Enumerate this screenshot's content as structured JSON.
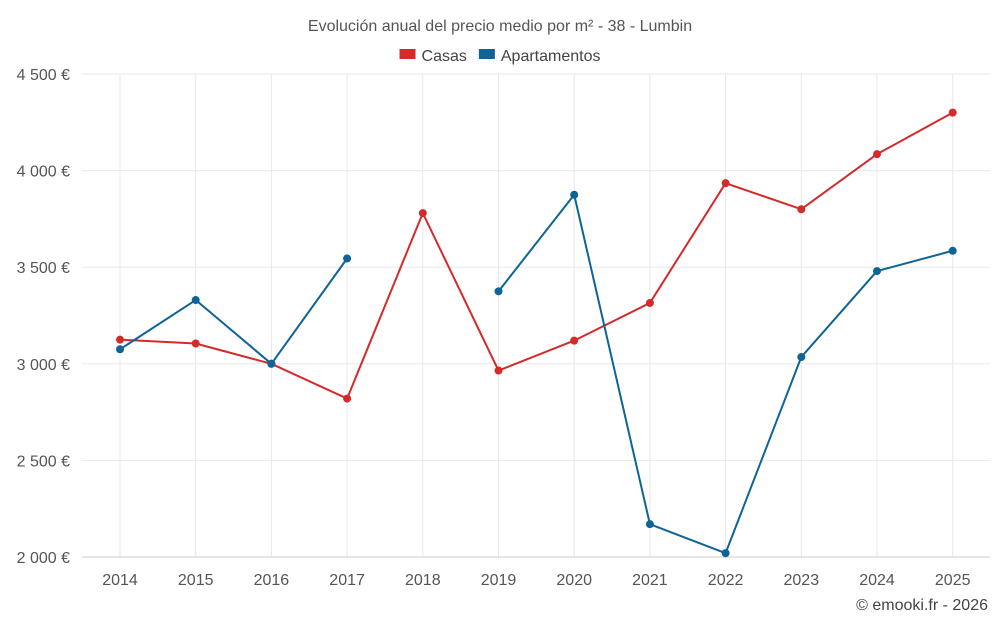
{
  "chart_data": {
    "type": "line",
    "title": "Evolución anual del precio medio por m² - 38 - Lumbin",
    "categories": [
      "2014",
      "2015",
      "2016",
      "2017",
      "2018",
      "2019",
      "2020",
      "2021",
      "2022",
      "2023",
      "2024",
      "2025"
    ],
    "series": [
      {
        "name": "Casas",
        "color": "#d42a2a",
        "values": [
          3125,
          3105,
          3000,
          2820,
          3780,
          2965,
          3120,
          3315,
          3935,
          3800,
          4085,
          4300
        ]
      },
      {
        "name": "Apartamentos",
        "color": "#0e6496",
        "values": [
          3075,
          3330,
          3000,
          3545,
          null,
          3375,
          3875,
          2170,
          2020,
          3035,
          3480,
          3585
        ]
      }
    ],
    "y_ticks": [
      2000,
      2500,
      3000,
      3500,
      4000,
      4500
    ],
    "y_tick_labels": [
      "2 000 €",
      "2 500 €",
      "3 000 €",
      "3 500 €",
      "4 000 €",
      "4 500 €"
    ],
    "ylim": [
      2000,
      4500
    ],
    "xlabel": "",
    "ylabel": "",
    "grid": true,
    "legend_position": "top-center"
  },
  "credit": "© emooki.fr - 2026"
}
